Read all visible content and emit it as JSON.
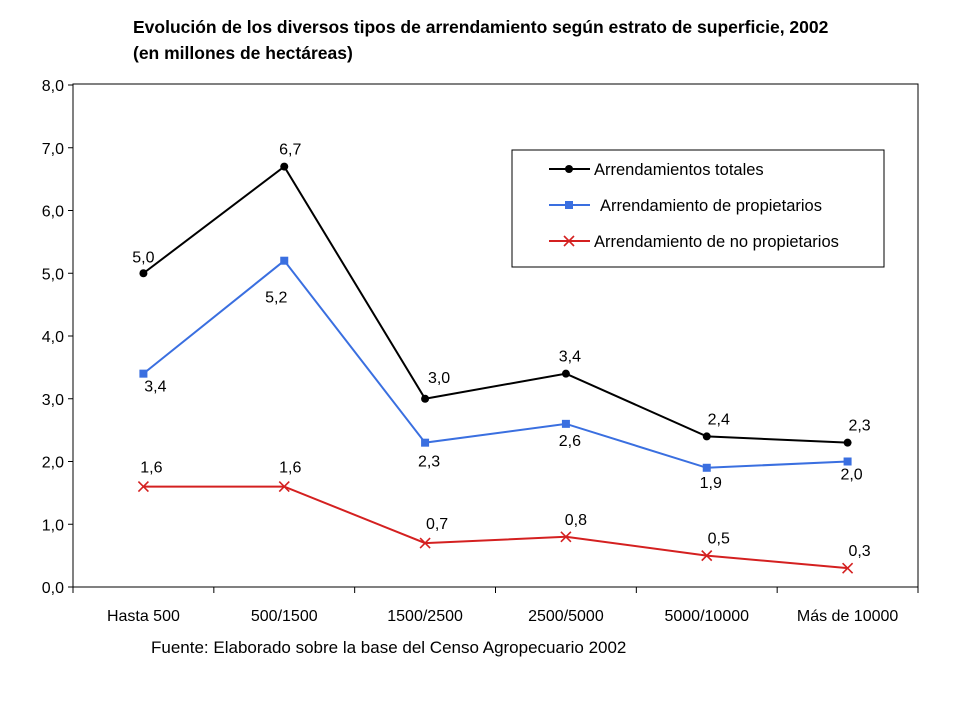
{
  "chart_data": {
    "type": "line",
    "title": "Evolución de los diversos tipos de arrendamiento según estrato de superficie, 2002",
    "subtitle": "(en millones de hectáreas)",
    "categories": [
      "Hasta 500",
      "500/1500",
      "1500/2500",
      "2500/5000",
      "5000/10000",
      "Más de 10000"
    ],
    "ylim": [
      0,
      8
    ],
    "yticks": [
      "0,0",
      "1,0",
      "2,0",
      "3,0",
      "4,0",
      "5,0",
      "6,0",
      "7,0",
      "8,0"
    ],
    "grid": false,
    "legend_position": "top-right",
    "series": [
      {
        "name": "Arrendamientos totales",
        "color": "#000000",
        "marker": "circle",
        "values": [
          5.0,
          6.7,
          3.0,
          3.4,
          2.4,
          2.3
        ],
        "labels": [
          "5,0",
          "6,7",
          "3,0",
          "3,4",
          "2,4",
          "2,3"
        ]
      },
      {
        "name": "Arrendamiento de propietarios",
        "color": "#3a6fe0",
        "marker": "square",
        "values": [
          3.4,
          5.2,
          2.3,
          2.6,
          1.9,
          2.0
        ],
        "labels": [
          "3,4",
          "5,2",
          "2,3",
          "2,6",
          "1,9",
          "2,0"
        ]
      },
      {
        "name": "Arrendamiento de no propietarios",
        "color": "#d42020",
        "marker": "x",
        "values": [
          1.6,
          1.6,
          0.7,
          0.8,
          0.5,
          0.3
        ],
        "labels": [
          "1,6",
          "1,6",
          "0,7",
          "0,8",
          "0,5",
          "0,3"
        ]
      }
    ],
    "source": "Fuente: Elaborado sobre la base del Censo Agropecuario 2002"
  }
}
